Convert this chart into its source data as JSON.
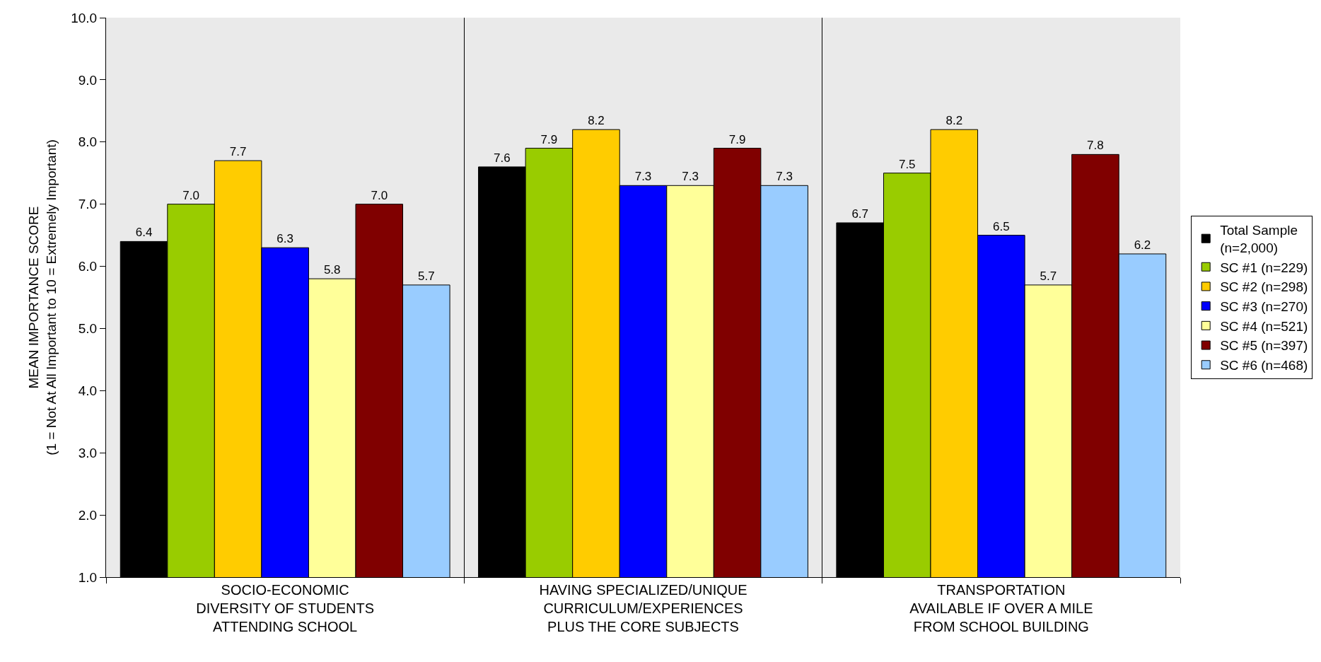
{
  "chart_data": {
    "type": "bar",
    "ylabel": "MEAN IMPORTANCE SCORE\n(1 = Not At All Important to 10 = Extremely Important)",
    "categories": [
      "SOCIO-ECONOMIC\nDIVERSITY OF STUDENTS\nATTENDING SCHOOL",
      "HAVING SPECIALIZED/UNIQUE\nCURRICULUM/EXPERIENCES\nPLUS THE CORE SUBJECTS",
      "TRANSPORTATION\nAVAILABLE IF OVER A MILE\nFROM SCHOOL BUILDING"
    ],
    "series": [
      {
        "name": "Total Sample\n(n=2,000)",
        "color": "#000000",
        "values": [
          6.4,
          7.6,
          6.7
        ],
        "value_labels": [
          "6.4",
          "7.6",
          "6.7"
        ]
      },
      {
        "name": "SC #1 (n=229)",
        "color": "#99cc00",
        "values": [
          7.0,
          7.9,
          7.5
        ],
        "value_labels": [
          "7.0",
          "7.9",
          "7.5"
        ]
      },
      {
        "name": "SC #2 (n=298)",
        "color": "#ffcc00",
        "values": [
          7.7,
          8.2,
          8.2
        ],
        "value_labels": [
          "7.7",
          "8.2",
          "8.2"
        ]
      },
      {
        "name": "SC #3 (n=270)",
        "color": "#0000ff",
        "values": [
          6.3,
          7.3,
          6.5
        ],
        "value_labels": [
          "6.3",
          "7.3",
          "6.5"
        ]
      },
      {
        "name": "SC #4 (n=521)",
        "color": "#ffff99",
        "values": [
          5.8,
          7.3,
          5.7
        ],
        "value_labels": [
          "5.8",
          "7.3",
          "5.7"
        ]
      },
      {
        "name": "SC #5 (n=397)",
        "color": "#800000",
        "values": [
          7.0,
          7.9,
          7.8
        ],
        "value_labels": [
          "7.0",
          "7.9",
          "7.8"
        ]
      },
      {
        "name": "SC #6 (n=468)",
        "color": "#99ccff",
        "values": [
          5.7,
          7.3,
          6.2
        ],
        "value_labels": [
          "5.7",
          "7.3",
          "6.2"
        ]
      }
    ],
    "ylim": [
      1,
      10
    ],
    "yticks": [
      {
        "value": 1,
        "label": "1.0"
      },
      {
        "value": 2,
        "label": "2.0"
      },
      {
        "value": 3,
        "label": "3.0"
      },
      {
        "value": 4,
        "label": "4.0"
      },
      {
        "value": 5,
        "label": "5.0"
      },
      {
        "value": 6,
        "label": "6.0"
      },
      {
        "value": 7,
        "label": "7.0"
      },
      {
        "value": 8,
        "label": "8.0"
      },
      {
        "value": 9,
        "label": "9.0"
      },
      {
        "value": 10,
        "label": "10.0"
      }
    ],
    "grid": "x",
    "legend": "right"
  }
}
